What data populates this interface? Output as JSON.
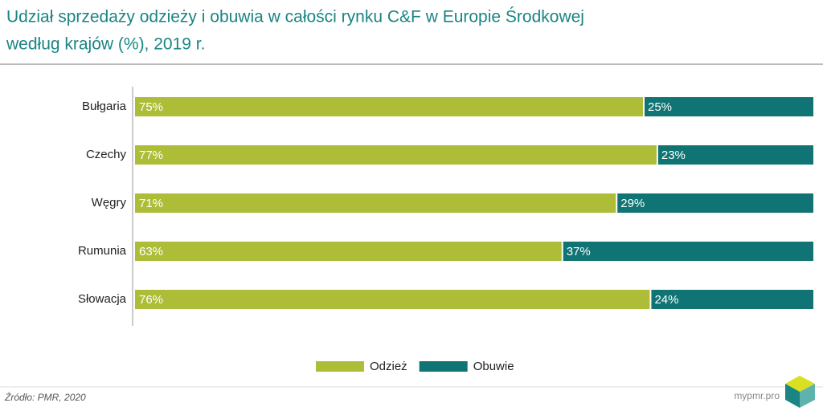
{
  "chart_data": {
    "type": "stacked_bar_horizontal",
    "title": "Udział sprzedaży odzieży i obuwia w całości rynku C&F w Europie Środkowej",
    "subtitle": "według krajów (%), 2019 r.",
    "categories": [
      "Bułgaria",
      "Czechy",
      "Węgry",
      "Rumunia",
      "Słowacja"
    ],
    "series": [
      {
        "name": "Odzież",
        "color": "#aebd37",
        "values": [
          75,
          77,
          71,
          63,
          76
        ],
        "value_labels": [
          "75%",
          "77%",
          "71%",
          "63%",
          "76%"
        ]
      },
      {
        "name": "Obuwie",
        "color": "#0f7473",
        "values": [
          25,
          23,
          29,
          37,
          24
        ],
        "value_labels": [
          "25%",
          "23%",
          "29%",
          "37%",
          "24%"
        ]
      }
    ],
    "xlim": [
      0,
      100
    ],
    "legend": "bottom",
    "source": "Źródło: PMR, 2020",
    "brand": "mypmr.pro"
  }
}
